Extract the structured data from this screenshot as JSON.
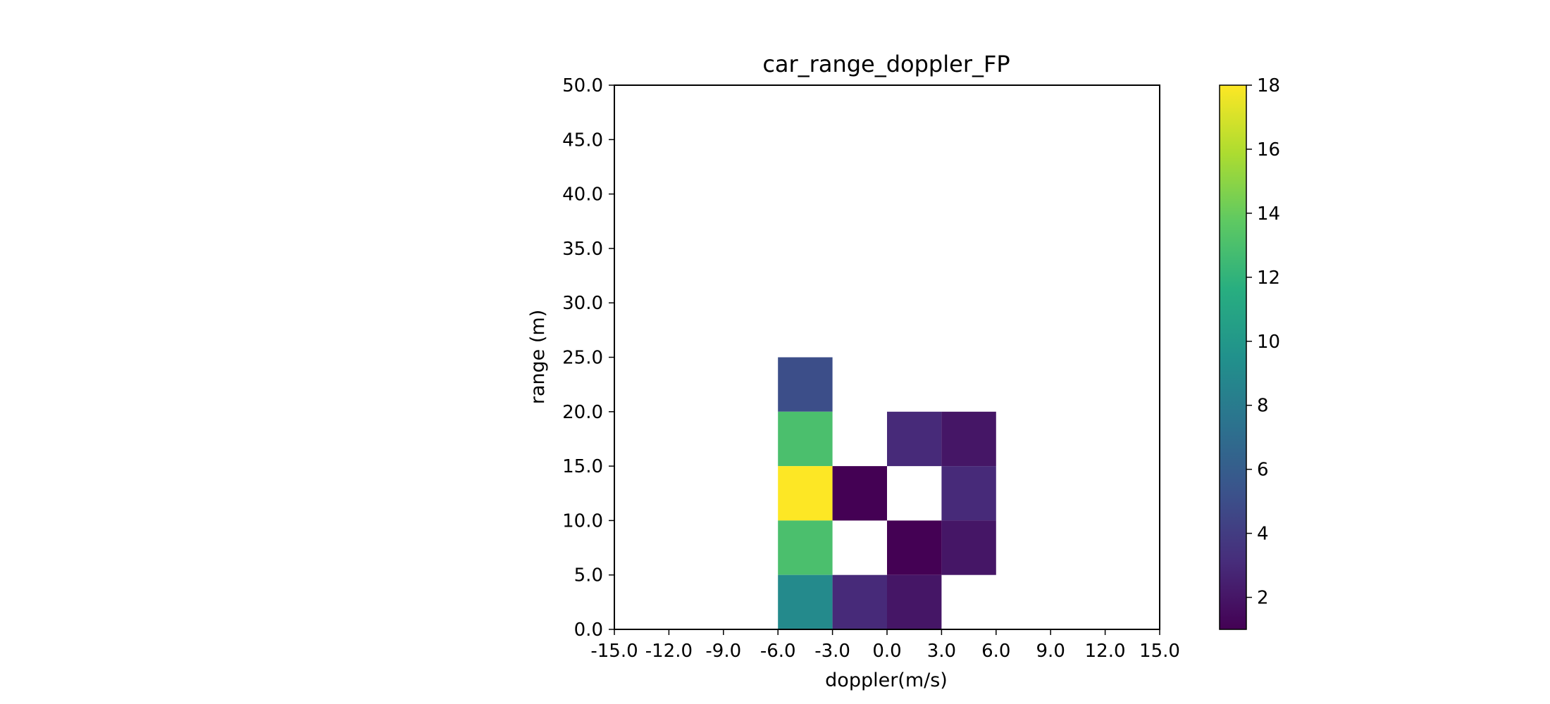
{
  "chart_data": {
    "type": "heatmap",
    "title": "car_range_doppler_FP",
    "xlabel": "doppler(m/s)",
    "ylabel": "range (m)",
    "xlim": [
      -15,
      15
    ],
    "ylim": [
      0,
      50
    ],
    "x_ticks": [
      "-15.0",
      "-12.0",
      "-9.0",
      "-6.0",
      "-3.0",
      "0.0",
      "3.0",
      "6.0",
      "9.0",
      "12.0",
      "15.0"
    ],
    "y_ticks": [
      "0.0",
      "5.0",
      "10.0",
      "15.0",
      "20.0",
      "25.0",
      "30.0",
      "35.0",
      "40.0",
      "45.0",
      "50.0"
    ],
    "colormap": "viridis",
    "color_range": [
      1,
      18
    ],
    "colorbar_ticks": [
      "2",
      "4",
      "6",
      "8",
      "10",
      "12",
      "14",
      "16",
      "18"
    ],
    "empty_cell_color": "#ffffff",
    "grid": false,
    "cells": [
      {
        "doppler": [
          -6,
          -3
        ],
        "range": [
          20,
          25
        ],
        "value": 5
      },
      {
        "doppler": [
          -6,
          -3
        ],
        "range": [
          15,
          20
        ],
        "value": 13
      },
      {
        "doppler": [
          -6,
          -3
        ],
        "range": [
          10,
          15
        ],
        "value": 18
      },
      {
        "doppler": [
          -6,
          -3
        ],
        "range": [
          5,
          10
        ],
        "value": 13
      },
      {
        "doppler": [
          -6,
          -3
        ],
        "range": [
          0,
          5
        ],
        "value": 9
      },
      {
        "doppler": [
          -3,
          0
        ],
        "range": [
          10,
          15
        ],
        "value": 1
      },
      {
        "doppler": [
          -3,
          0
        ],
        "range": [
          0,
          5
        ],
        "value": 3
      },
      {
        "doppler": [
          0,
          3
        ],
        "range": [
          15,
          20
        ],
        "value": 3
      },
      {
        "doppler": [
          0,
          3
        ],
        "range": [
          5,
          10
        ],
        "value": 1
      },
      {
        "doppler": [
          0,
          3
        ],
        "range": [
          0,
          5
        ],
        "value": 2
      },
      {
        "doppler": [
          3,
          6
        ],
        "range": [
          15,
          20
        ],
        "value": 2
      },
      {
        "doppler": [
          3,
          6
        ],
        "range": [
          10,
          15
        ],
        "value": 3
      },
      {
        "doppler": [
          3,
          6
        ],
        "range": [
          5,
          10
        ],
        "value": 2
      }
    ]
  }
}
